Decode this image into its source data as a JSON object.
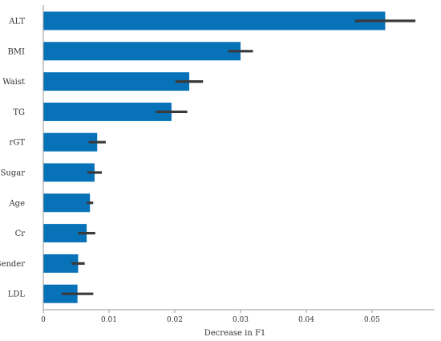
{
  "chart_data": {
    "type": "bar",
    "orientation": "horizontal",
    "categories": [
      "ALT",
      "BMI",
      "Waist",
      "TG",
      "rGT",
      "Sugar",
      "Age",
      "Cr",
      "Gender",
      "LDL"
    ],
    "values": [
      0.052,
      0.03,
      0.0222,
      0.0195,
      0.0082,
      0.0078,
      0.0071,
      0.0066,
      0.0053,
      0.0052
    ],
    "errors": [
      0.0046,
      0.0019,
      0.0021,
      0.0024,
      0.0013,
      0.0011,
      0.0005,
      0.0013,
      0.001,
      0.0024
    ],
    "xlabel": "Decrease in F1",
    "ylabel": "",
    "xlim": [
      0,
      0.06
    ],
    "xticks": [
      0,
      0.01,
      0.02,
      0.03,
      0.04,
      0.05
    ],
    "xtick_labels": [
      "0",
      "0.01",
      "0.02",
      "0.03",
      "0.04",
      "0.05"
    ],
    "grid": false,
    "bar_color": "#0872B8",
    "error_color": "#3A3A3A"
  }
}
